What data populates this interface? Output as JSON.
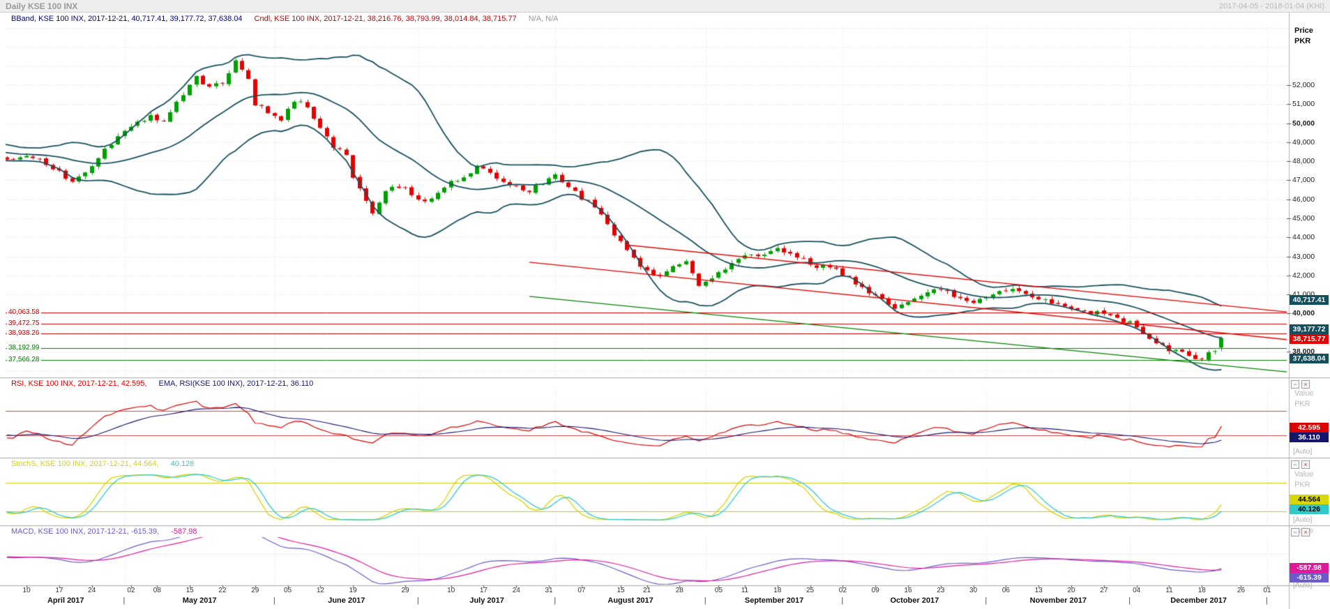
{
  "titlebar": {
    "title": "Daily KSE 100 INX",
    "range": "2017-04-05 - 2018-01-04 (KHI)"
  },
  "legend_main": {
    "bband": "BBand, KSE 100 INX, 2017-12-21, 40,717.41, 39,177.72, 37,638.04",
    "cndl": "Cndl, KSE 100 INX, 2017-12-21, 38,216.76, 38,793.99, 38,014.84, 38,715.77",
    "extra": "N/A, N/A"
  },
  "price_axis": {
    "title": "Price",
    "unit": "PKR",
    "ticks": [
      {
        "label": "52,000",
        "value": 52000,
        "bold": false
      },
      {
        "label": "51,000",
        "value": 51000,
        "bold": false
      },
      {
        "label": "50,000",
        "value": 50000,
        "bold": true
      },
      {
        "label": "49,000",
        "value": 49000,
        "bold": false
      },
      {
        "label": "48,000",
        "value": 48000,
        "bold": false
      },
      {
        "label": "47,000",
        "value": 47000,
        "bold": false
      },
      {
        "label": "46,000",
        "value": 46000,
        "bold": false
      },
      {
        "label": "45,000",
        "value": 45000,
        "bold": false
      },
      {
        "label": "44,000",
        "value": 44000,
        "bold": false
      },
      {
        "label": "43,000",
        "value": 43000,
        "bold": false
      },
      {
        "label": "42,000",
        "value": 42000,
        "bold": false
      },
      {
        "label": "41,000",
        "value": 41000,
        "bold": false
      },
      {
        "label": "40,000",
        "value": 40000,
        "bold": true
      },
      {
        "label": "38,000",
        "value": 38000,
        "bold": true
      }
    ],
    "badges": [
      {
        "label": "40,717.41",
        "value": 40717.41,
        "bg": "#12505f",
        "fg": "#ffffff"
      },
      {
        "label": "39,177.72",
        "value": 39177.72,
        "bg": "#12505f",
        "fg": "#ffffff"
      },
      {
        "label": "38,715.77",
        "value": 38715.77,
        "bg": "#e60000",
        "fg": "#ffffff"
      },
      {
        "label": "37,638.04",
        "value": 37638.04,
        "bg": "#12505f",
        "fg": "#ffffff"
      }
    ]
  },
  "panels": {
    "rsi": {
      "legend_series": "RSI, KSE 100 INX, 2017-12-21, 42.595,",
      "legend_ema": "EMA, RSI(KSE 100 INX), 2017-12-21, 36.110",
      "value_label": "Value",
      "unit_label": "PKR",
      "auto_label": "[Auto]",
      "ref_high": 70,
      "ref_low": 30,
      "badges": [
        {
          "label": "42.595",
          "value": 42.595,
          "bg": "#dd0000",
          "fg": "#ffffff"
        },
        {
          "label": "36.110",
          "value": 36.11,
          "bg": "#15156e",
          "fg": "#ffffff"
        }
      ]
    },
    "stoch": {
      "legend_series": "StochS, KSE 100 INX, 2017-12-21, 44.564,",
      "legend_d": "40.126",
      "value_label": "Value",
      "unit_label": "PKR",
      "auto_label": "[Auto]",
      "ref_high": 80,
      "ref_low": 20,
      "badges": [
        {
          "label": "44.564",
          "value": 44.564,
          "bg": "#d8d800",
          "fg": "#000000"
        },
        {
          "label": "40.126",
          "value": 40.126,
          "bg": "#2fc9c9",
          "fg": "#000000"
        }
      ]
    },
    "macd": {
      "legend_series": "MACD, KSE 100 INX, 2017-12-21, -615.39,",
      "legend_signal": "-587.98",
      "value_label": "Value",
      "auto_label": "[Auto]",
      "badges": [
        {
          "label": "-587.98",
          "value": -587.98,
          "bg": "#e0189b",
          "fg": "#ffffff"
        },
        {
          "label": "-615.39",
          "value": -615.39,
          "bg": "#6a5acd",
          "fg": "#ffffff"
        }
      ]
    }
  },
  "xaxis": {
    "ticks": [
      {
        "label": "10",
        "day": 3
      },
      {
        "label": "17",
        "day": 8
      },
      {
        "label": "24",
        "day": 13
      },
      {
        "label": "02",
        "day": 19
      },
      {
        "label": "08",
        "day": 23
      },
      {
        "label": "15",
        "day": 28
      },
      {
        "label": "22",
        "day": 33
      },
      {
        "label": "29",
        "day": 38
      },
      {
        "label": "05",
        "day": 43
      },
      {
        "label": "12",
        "day": 48
      },
      {
        "label": "19",
        "day": 53
      },
      {
        "label": "29",
        "day": 61
      },
      {
        "label": "10",
        "day": 68
      },
      {
        "label": "17",
        "day": 73
      },
      {
        "label": "24",
        "day": 78
      },
      {
        "label": "31",
        "day": 83
      },
      {
        "label": "07",
        "day": 88
      },
      {
        "label": "15",
        "day": 94
      },
      {
        "label": "21",
        "day": 98
      },
      {
        "label": "28",
        "day": 103
      },
      {
        "label": "05",
        "day": 109
      },
      {
        "label": "11",
        "day": 113
      },
      {
        "label": "18",
        "day": 118
      },
      {
        "label": "25",
        "day": 123
      },
      {
        "label": "02",
        "day": 128
      },
      {
        "label": "09",
        "day": 133
      },
      {
        "label": "16",
        "day": 138
      },
      {
        "label": "23",
        "day": 143
      },
      {
        "label": "30",
        "day": 148
      },
      {
        "label": "06",
        "day": 153
      },
      {
        "label": "13",
        "day": 158
      },
      {
        "label": "20",
        "day": 163
      },
      {
        "label": "27",
        "day": 168
      },
      {
        "label": "04",
        "day": 173
      },
      {
        "label": "11",
        "day": 178
      },
      {
        "label": "18",
        "day": 183
      },
      {
        "label": "26",
        "day": 189
      },
      {
        "label": "01",
        "day": 193
      }
    ],
    "months": [
      {
        "label": "April 2017",
        "start": 0,
        "end": 18
      },
      {
        "label": "May 2017",
        "start": 18,
        "end": 41
      },
      {
        "label": "June 2017",
        "start": 41,
        "end": 63
      },
      {
        "label": "July 2017",
        "start": 63,
        "end": 84
      },
      {
        "label": "August 2017",
        "start": 84,
        "end": 107
      },
      {
        "label": "September 2017",
        "start": 107,
        "end": 128
      },
      {
        "label": "October 2017",
        "start": 128,
        "end": 150
      },
      {
        "label": "November 2017",
        "start": 150,
        "end": 172
      },
      {
        "label": "December 2017",
        "start": 172,
        "end": 193
      }
    ]
  },
  "icons": {
    "minimize": "−",
    "close": "×"
  },
  "colors": {
    "up": "#00a000",
    "down": "#e60000",
    "bband": "#17505e",
    "legend_bband": "#00008b",
    "legend_cndl": "#cc0000",
    "legend_na": "#999999",
    "rsi": "#dd0000",
    "rsi_ema": "#15156e",
    "rsi_ref": "#cc4444",
    "stoch_k": "#d4d400",
    "stoch_d": "#2fc9c9",
    "stoch_ref": "#c8c800",
    "macd": "#6a5acd",
    "macd_signal": "#e0189b",
    "grid": "#dedede",
    "axis_border": "#b0b0b0",
    "tick": "#555555"
  },
  "chart_data": {
    "type": "candlestick",
    "instrument": "KSE 100 INX",
    "interval": "Daily",
    "visible_range": "2017-04-05 - 2018-01-04",
    "last_bar_date": "2017-12-21",
    "last_candle": {
      "open": 38216.76,
      "high": 38793.99,
      "low": 38014.84,
      "close": 38715.77
    },
    "bollinger": {
      "period": 20,
      "stdev": 2,
      "upper": 40717.41,
      "middle": 39177.72,
      "lower": 37638.04
    },
    "rsi": {
      "value": 42.595,
      "ema": 36.11,
      "ref_high": 70,
      "ref_low": 30
    },
    "stochastics": {
      "k": 44.564,
      "d": 40.126,
      "ref_high": 80,
      "ref_low": 20
    },
    "macd": {
      "macd": -615.39,
      "signal": -587.98
    },
    "levels": [
      {
        "label": "40,063.58",
        "value": 40063.58,
        "color": "#cc0000"
      },
      {
        "label": "39,472.75",
        "value": 39472.75,
        "color": "#cc0000"
      },
      {
        "label": "38,938.26",
        "value": 38938.26,
        "color": "#cc0000"
      },
      {
        "label": "38,192.99",
        "value": 38192.99,
        "color": "#007a00"
      },
      {
        "label": "37,566.28",
        "value": 37566.28,
        "color": "#007a00"
      }
    ],
    "trendlines": [
      {
        "color": "#e60000",
        "from": [
          95,
          43600
        ],
        "to": [
          197,
          40050
        ]
      },
      {
        "color": "#e60000",
        "from": [
          80,
          42700
        ],
        "to": [
          197,
          38600
        ]
      },
      {
        "color": "#008000",
        "from": [
          80,
          40900
        ],
        "to": [
          197,
          36900
        ]
      }
    ],
    "month_boundaries": [
      18,
      41,
      63,
      84,
      107,
      128,
      150,
      172,
      193
    ],
    "days_total": 196,
    "bars_total": 187,
    "close_waypoints": [
      [
        -20,
        48900
      ],
      [
        -14,
        48350
      ],
      [
        -8,
        48600
      ],
      [
        0,
        48100
      ],
      [
        3,
        48300
      ],
      [
        6,
        47900
      ],
      [
        10,
        46900
      ],
      [
        12,
        47400
      ],
      [
        15,
        48600
      ],
      [
        17,
        49300
      ],
      [
        19,
        49800
      ],
      [
        22,
        50400
      ],
      [
        24,
        50100
      ],
      [
        27,
        51500
      ],
      [
        29,
        52400
      ],
      [
        31,
        51900
      ],
      [
        33,
        52100
      ],
      [
        35,
        53300
      ],
      [
        37,
        52400
      ],
      [
        38,
        51000
      ],
      [
        40,
        50600
      ],
      [
        42,
        50100
      ],
      [
        44,
        51200
      ],
      [
        46,
        50900
      ],
      [
        48,
        49800
      ],
      [
        50,
        48800
      ],
      [
        52,
        48300
      ],
      [
        53,
        47200
      ],
      [
        55,
        45900
      ],
      [
        56,
        45300
      ],
      [
        58,
        46400
      ],
      [
        60,
        46700
      ],
      [
        62,
        46300
      ],
      [
        64,
        45900
      ],
      [
        66,
        46400
      ],
      [
        68,
        46900
      ],
      [
        70,
        47200
      ],
      [
        72,
        47700
      ],
      [
        74,
        47400
      ],
      [
        76,
        47000
      ],
      [
        78,
        46700
      ],
      [
        80,
        46400
      ],
      [
        82,
        46900
      ],
      [
        84,
        47200
      ],
      [
        86,
        46600
      ],
      [
        88,
        46100
      ],
      [
        90,
        45600
      ],
      [
        92,
        44700
      ],
      [
        94,
        43700
      ],
      [
        96,
        42900
      ],
      [
        98,
        42200
      ],
      [
        100,
        41900
      ],
      [
        102,
        42400
      ],
      [
        104,
        42700
      ],
      [
        106,
        41500
      ],
      [
        108,
        41900
      ],
      [
        110,
        42400
      ],
      [
        112,
        42900
      ],
      [
        114,
        43200
      ],
      [
        116,
        43000
      ],
      [
        118,
        43400
      ],
      [
        120,
        43100
      ],
      [
        122,
        42800
      ],
      [
        124,
        42500
      ],
      [
        126,
        42400
      ],
      [
        128,
        42100
      ],
      [
        130,
        41600
      ],
      [
        132,
        41100
      ],
      [
        134,
        40700
      ],
      [
        136,
        40200
      ],
      [
        138,
        40600
      ],
      [
        140,
        41000
      ],
      [
        142,
        41300
      ],
      [
        144,
        41100
      ],
      [
        146,
        40800
      ],
      [
        148,
        40500
      ],
      [
        150,
        40900
      ],
      [
        152,
        41200
      ],
      [
        154,
        41300
      ],
      [
        156,
        41000
      ],
      [
        158,
        40800
      ],
      [
        160,
        40600
      ],
      [
        162,
        40300
      ],
      [
        164,
        40200
      ],
      [
        166,
        40000
      ],
      [
        168,
        40100
      ],
      [
        170,
        39800
      ],
      [
        172,
        39500
      ],
      [
        174,
        39000
      ],
      [
        176,
        38500
      ],
      [
        178,
        38100
      ],
      [
        180,
        37900
      ],
      [
        182,
        37700
      ],
      [
        183,
        37600
      ],
      [
        184,
        37900
      ],
      [
        185,
        38000
      ],
      [
        186,
        38500
      ]
    ]
  }
}
